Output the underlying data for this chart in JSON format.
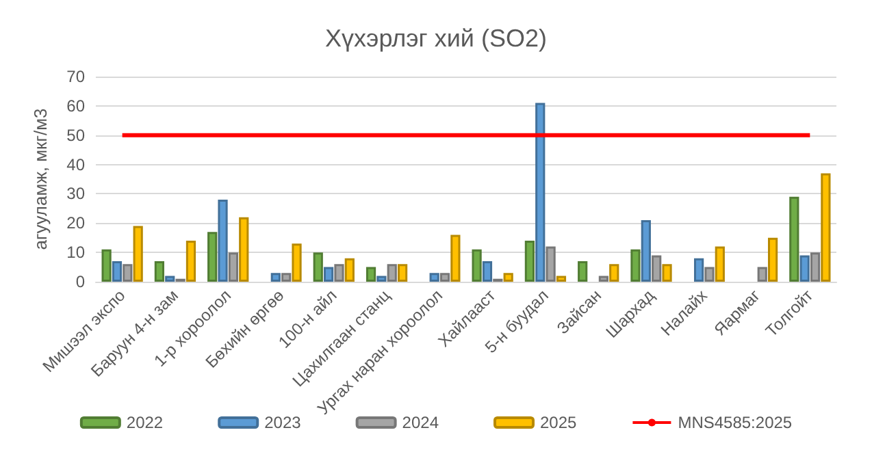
{
  "chart_data": {
    "type": "bar",
    "title": "Хүхэрлэг хий (SO2)",
    "ylabel": "агууламж, мкг/м3",
    "categories": [
      "Мишээл экспо",
      "Баруун 4-н зам",
      "1-р хороолол",
      "Бөхийн өргөө",
      "100-н айл",
      "Цахилгаан станц",
      "Ургах наран хороолол",
      "Хайлааст",
      "5-н буудал",
      "Зайсан",
      "Шархад",
      "Налайх",
      "Яармаг",
      "Толгойт"
    ],
    "series": [
      {
        "name": "2022",
        "color": "#70ad47",
        "values": [
          11,
          7,
          17,
          null,
          10,
          5,
          null,
          11,
          14,
          7,
          11,
          null,
          null,
          29
        ]
      },
      {
        "name": "2023",
        "color": "#5b9bd5",
        "values": [
          7,
          2,
          28,
          3,
          5,
          2,
          3,
          7,
          61,
          null,
          21,
          8,
          null,
          9
        ]
      },
      {
        "name": "2024",
        "color": "#a5a5a5",
        "values": [
          6,
          1,
          10,
          3,
          6,
          6,
          3,
          1,
          12,
          2,
          9,
          5,
          5,
          10
        ]
      },
      {
        "name": "2025",
        "color": "#ffc000",
        "values": [
          19,
          14,
          22,
          13,
          8,
          6,
          16,
          3,
          2,
          6,
          6,
          12,
          15,
          37
        ]
      },
      {
        "name": "MNS4585:2025",
        "type": "line",
        "color": "#ff0000",
        "marker": "none",
        "values": [
          50,
          50,
          50,
          50,
          50,
          50,
          50,
          50,
          50,
          50,
          50,
          50,
          50,
          50
        ]
      }
    ],
    "ylim": [
      0,
      70
    ],
    "yticks": [
      0,
      10,
      20,
      30,
      40,
      50,
      60,
      70
    ],
    "grid": "y",
    "legend": "bottom"
  }
}
